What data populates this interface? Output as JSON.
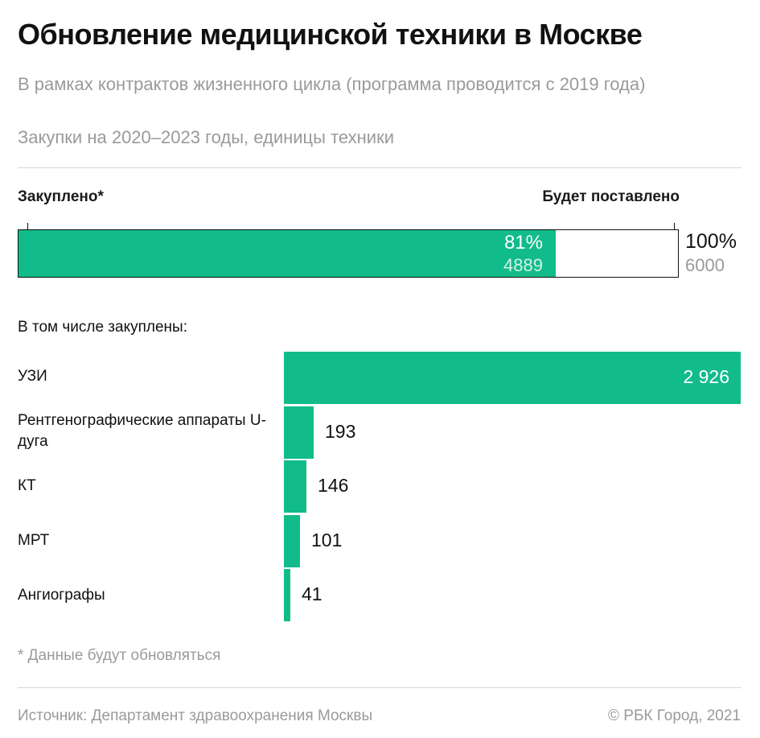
{
  "title": "Обновление медицинской техники в Москве",
  "subtitle": "В рамках контрактов жизненного цикла (программа проводится с 2019 года)",
  "subtitle2": "Закупки на 2020–2023 годы, единицы техники",
  "colors": {
    "accent": "#12bc8a",
    "muted": "#9a9a9a"
  },
  "chart_data": [
    {
      "type": "bar",
      "orientation": "horizontal",
      "stacked": true,
      "label_left": "Закуплено*",
      "label_right": "Будет поставлено",
      "purchased_pct_label": "81%",
      "purchased_value": 4889,
      "purchased_value_label": "4889",
      "total_pct_label": "100%",
      "total_value": 6000,
      "total_value_label": "6000"
    },
    {
      "type": "bar",
      "orientation": "horizontal",
      "title": "В том числе закуплены:",
      "categories": [
        "УЗИ",
        "Рентгенографические аппараты U-дуга",
        "КТ",
        "МРТ",
        "Ангиографы"
      ],
      "values": [
        2926,
        193,
        146,
        101,
        41
      ],
      "value_labels": [
        "2 926",
        "193",
        "146",
        "101",
        "41"
      ]
    }
  ],
  "note": "* Данные будут обновляться",
  "source": "Источник: Департамент здравоохранения Москвы",
  "copyright": "© РБК Город, 2021"
}
